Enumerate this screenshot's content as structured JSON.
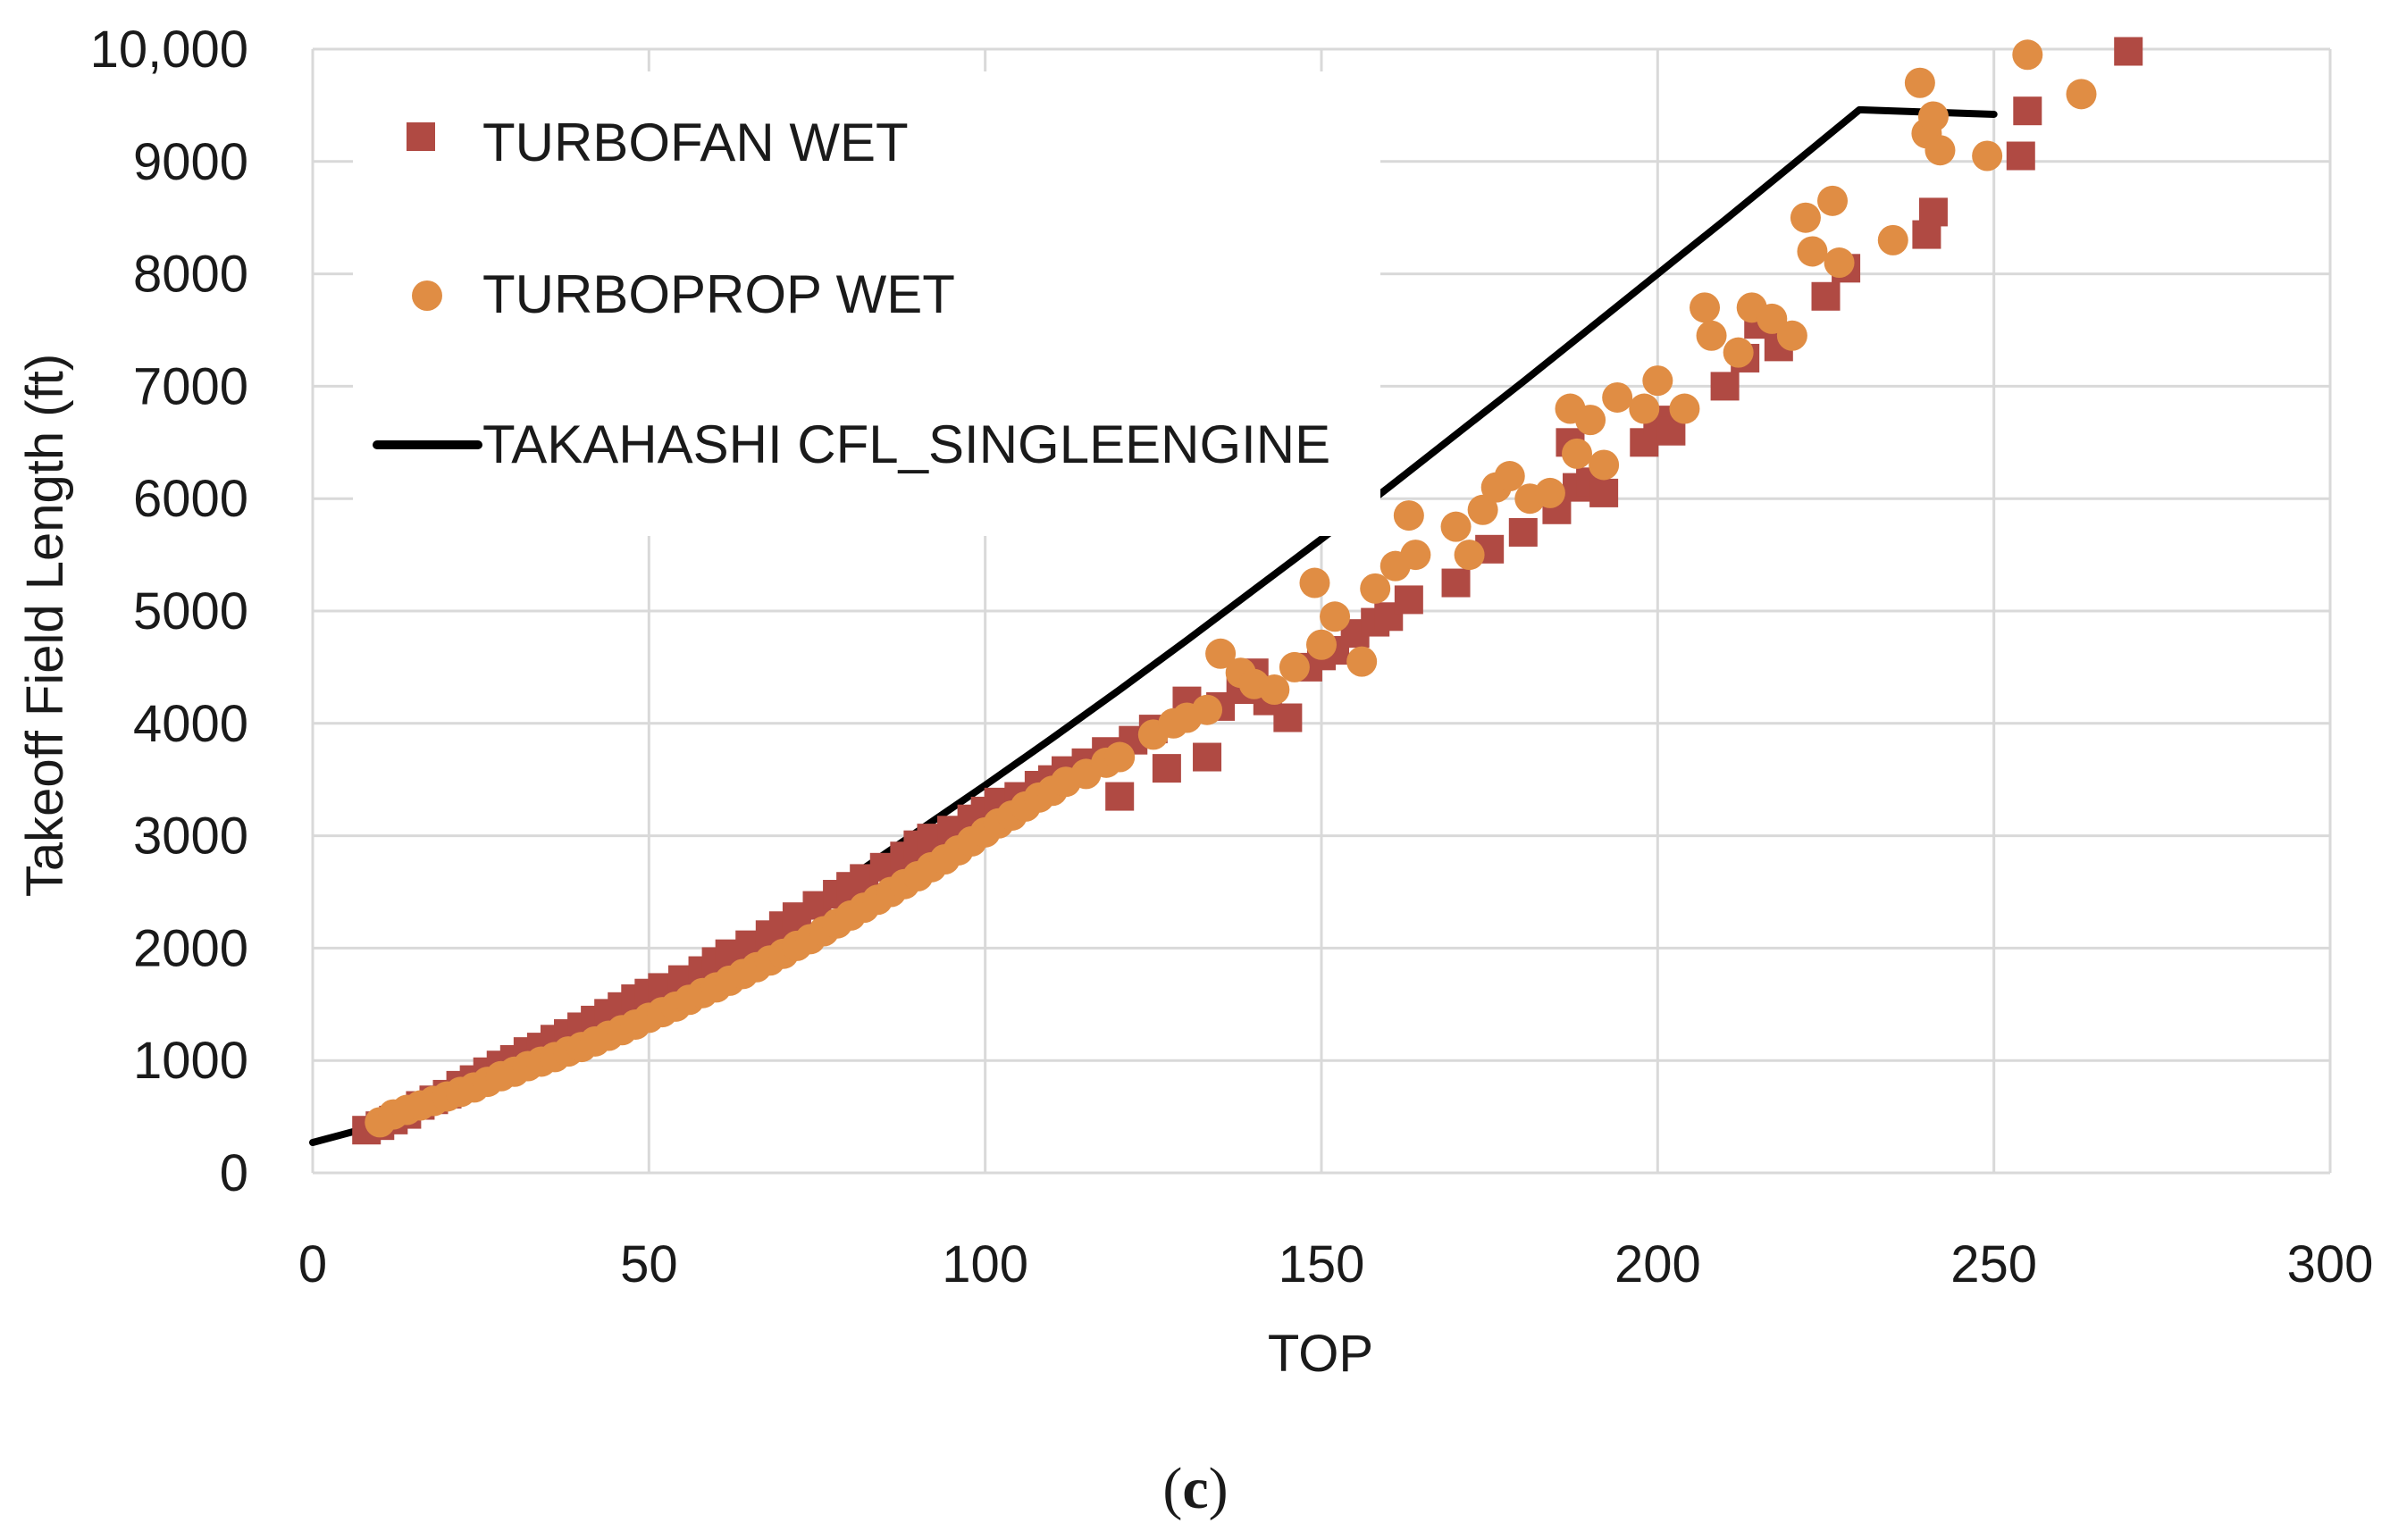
{
  "chart_data": {
    "type": "scatter",
    "title": "",
    "xlabel": "TOP",
    "ylabel": "Takeoff Field Length (ft)",
    "xlim": [
      0,
      300
    ],
    "ylim": [
      0,
      10000
    ],
    "x_ticks": [
      0,
      50,
      100,
      150,
      200,
      250,
      300
    ],
    "x_tick_labels": [
      "0",
      "50",
      "100",
      "150",
      "200",
      "250",
      "300"
    ],
    "y_ticks": [
      0,
      1000,
      2000,
      3000,
      4000,
      5000,
      6000,
      7000,
      8000,
      9000,
      10000
    ],
    "y_tick_labels": [
      "0",
      "1000",
      "2000",
      "3000",
      "4000",
      "5000",
      "6000",
      "7000",
      "8000",
      "9000",
      "10,000"
    ],
    "grid": true,
    "legend_position": "top-left",
    "caption": {
      "open": "(",
      "letter": "c",
      "close": ")"
    },
    "series": [
      {
        "name": "TURBOFAN WET",
        "marker": "square",
        "color": "#b04a43",
        "points": [
          [
            8,
            380
          ],
          [
            10,
            420
          ],
          [
            12,
            470
          ],
          [
            14,
            520
          ],
          [
            16,
            600
          ],
          [
            18,
            650
          ],
          [
            20,
            700
          ],
          [
            22,
            780
          ],
          [
            24,
            830
          ],
          [
            26,
            900
          ],
          [
            28,
            960
          ],
          [
            30,
            1010
          ],
          [
            32,
            1080
          ],
          [
            34,
            1120
          ],
          [
            36,
            1190
          ],
          [
            38,
            1240
          ],
          [
            40,
            1300
          ],
          [
            42,
            1360
          ],
          [
            44,
            1420
          ],
          [
            46,
            1480
          ],
          [
            48,
            1550
          ],
          [
            50,
            1600
          ],
          [
            52,
            1650
          ],
          [
            55,
            1720
          ],
          [
            58,
            1800
          ],
          [
            60,
            1880
          ],
          [
            62,
            1950
          ],
          [
            65,
            2030
          ],
          [
            68,
            2120
          ],
          [
            70,
            2200
          ],
          [
            72,
            2280
          ],
          [
            75,
            2380
          ],
          [
            78,
            2480
          ],
          [
            80,
            2550
          ],
          [
            82,
            2620
          ],
          [
            85,
            2720
          ],
          [
            88,
            2820
          ],
          [
            90,
            2920
          ],
          [
            92,
            2980
          ],
          [
            95,
            3050
          ],
          [
            98,
            3150
          ],
          [
            100,
            3220
          ],
          [
            102,
            3300
          ],
          [
            105,
            3350
          ],
          [
            108,
            3450
          ],
          [
            110,
            3500
          ],
          [
            112,
            3580
          ],
          [
            115,
            3650
          ],
          [
            118,
            3750
          ],
          [
            120,
            3350
          ],
          [
            122,
            3850
          ],
          [
            125,
            3950
          ],
          [
            127,
            3600
          ],
          [
            130,
            4200
          ],
          [
            133,
            3700
          ],
          [
            135,
            4150
          ],
          [
            138,
            4300
          ],
          [
            140,
            4450
          ],
          [
            142,
            4200
          ],
          [
            145,
            4050
          ],
          [
            148,
            4500
          ],
          [
            150,
            4600
          ],
          [
            152,
            4650
          ],
          [
            155,
            4800
          ],
          [
            158,
            4900
          ],
          [
            160,
            4950
          ],
          [
            163,
            5100
          ],
          [
            170,
            5250
          ],
          [
            175,
            5550
          ],
          [
            180,
            5700
          ],
          [
            185,
            5900
          ],
          [
            187,
            6500
          ],
          [
            188,
            6100
          ],
          [
            190,
            6150
          ],
          [
            192,
            6050
          ],
          [
            198,
            6500
          ],
          [
            200,
            6700
          ],
          [
            202,
            6600
          ],
          [
            210,
            7000
          ],
          [
            213,
            7250
          ],
          [
            215,
            7550
          ],
          [
            218,
            7350
          ],
          [
            225,
            7800
          ],
          [
            228,
            8050
          ],
          [
            240,
            8350
          ],
          [
            241,
            8550
          ],
          [
            254,
            9050
          ],
          [
            255,
            9450
          ],
          [
            270,
            9980
          ]
        ]
      },
      {
        "name": "TURBOPROP WET",
        "marker": "circle",
        "color": "#e08d44",
        "points": [
          [
            10,
            450
          ],
          [
            12,
            520
          ],
          [
            14,
            560
          ],
          [
            16,
            600
          ],
          [
            18,
            640
          ],
          [
            20,
            680
          ],
          [
            22,
            720
          ],
          [
            24,
            760
          ],
          [
            26,
            810
          ],
          [
            28,
            860
          ],
          [
            30,
            900
          ],
          [
            32,
            950
          ],
          [
            34,
            990
          ],
          [
            36,
            1030
          ],
          [
            38,
            1080
          ],
          [
            40,
            1120
          ],
          [
            42,
            1170
          ],
          [
            44,
            1220
          ],
          [
            46,
            1270
          ],
          [
            48,
            1320
          ],
          [
            50,
            1380
          ],
          [
            52,
            1430
          ],
          [
            54,
            1480
          ],
          [
            56,
            1540
          ],
          [
            58,
            1600
          ],
          [
            60,
            1650
          ],
          [
            62,
            1710
          ],
          [
            64,
            1770
          ],
          [
            66,
            1830
          ],
          [
            68,
            1890
          ],
          [
            70,
            1950
          ],
          [
            72,
            2020
          ],
          [
            74,
            2080
          ],
          [
            76,
            2150
          ],
          [
            78,
            2220
          ],
          [
            80,
            2290
          ],
          [
            82,
            2360
          ],
          [
            84,
            2430
          ],
          [
            86,
            2500
          ],
          [
            88,
            2570
          ],
          [
            90,
            2640
          ],
          [
            92,
            2720
          ],
          [
            94,
            2790
          ],
          [
            96,
            2870
          ],
          [
            98,
            2950
          ],
          [
            100,
            3030
          ],
          [
            102,
            3110
          ],
          [
            104,
            3180
          ],
          [
            106,
            3260
          ],
          [
            108,
            3340
          ],
          [
            110,
            3400
          ],
          [
            112,
            3480
          ],
          [
            115,
            3550
          ],
          [
            118,
            3650
          ],
          [
            120,
            3700
          ],
          [
            125,
            3900
          ],
          [
            128,
            4000
          ],
          [
            130,
            4050
          ],
          [
            133,
            4120
          ],
          [
            135,
            4620
          ],
          [
            138,
            4450
          ],
          [
            140,
            4350
          ],
          [
            143,
            4300
          ],
          [
            146,
            4500
          ],
          [
            149,
            5250
          ],
          [
            150,
            4700
          ],
          [
            152,
            4950
          ],
          [
            156,
            4550
          ],
          [
            158,
            5200
          ],
          [
            161,
            5400
          ],
          [
            163,
            5850
          ],
          [
            164,
            5500
          ],
          [
            170,
            5750
          ],
          [
            172,
            5500
          ],
          [
            174,
            5900
          ],
          [
            176,
            6100
          ],
          [
            178,
            6200
          ],
          [
            181,
            6000
          ],
          [
            184,
            6050
          ],
          [
            187,
            6800
          ],
          [
            188,
            6400
          ],
          [
            190,
            6700
          ],
          [
            192,
            6300
          ],
          [
            194,
            6900
          ],
          [
            198,
            6800
          ],
          [
            200,
            7050
          ],
          [
            204,
            6800
          ],
          [
            207,
            7700
          ],
          [
            208,
            7450
          ],
          [
            212,
            7300
          ],
          [
            214,
            7700
          ],
          [
            217,
            7600
          ],
          [
            220,
            7450
          ],
          [
            222,
            8500
          ],
          [
            223,
            8200
          ],
          [
            226,
            8650
          ],
          [
            227,
            8100
          ],
          [
            235,
            8300
          ],
          [
            239,
            9700
          ],
          [
            240,
            9250
          ],
          [
            241,
            9400
          ],
          [
            242,
            9100
          ],
          [
            249,
            9050
          ],
          [
            255,
            9950
          ],
          [
            263,
            9600
          ]
        ]
      }
    ],
    "fit_line": {
      "name": "TAKAHASHI CFL_SINGLEENGINE",
      "color": "#000000",
      "points": [
        [
          0,
          270
        ],
        [
          10,
          430
        ],
        [
          20,
          650
        ],
        [
          30,
          910
        ],
        [
          40,
          1210
        ],
        [
          50,
          1540
        ],
        [
          60,
          1880
        ],
        [
          70,
          2240
        ],
        [
          80,
          2630
        ],
        [
          90,
          3040
        ],
        [
          100,
          3450
        ],
        [
          110,
          3870
        ],
        [
          120,
          4300
        ],
        [
          130,
          4740
        ],
        [
          140,
          5190
        ],
        [
          150,
          5640
        ],
        [
          160,
          6100
        ],
        [
          170,
          6570
        ],
        [
          180,
          7040
        ],
        [
          190,
          7520
        ],
        [
          200,
          8000
        ],
        [
          210,
          8480
        ],
        [
          220,
          8970
        ],
        [
          230,
          9460
        ],
        [
          250,
          9420
        ]
      ]
    }
  }
}
